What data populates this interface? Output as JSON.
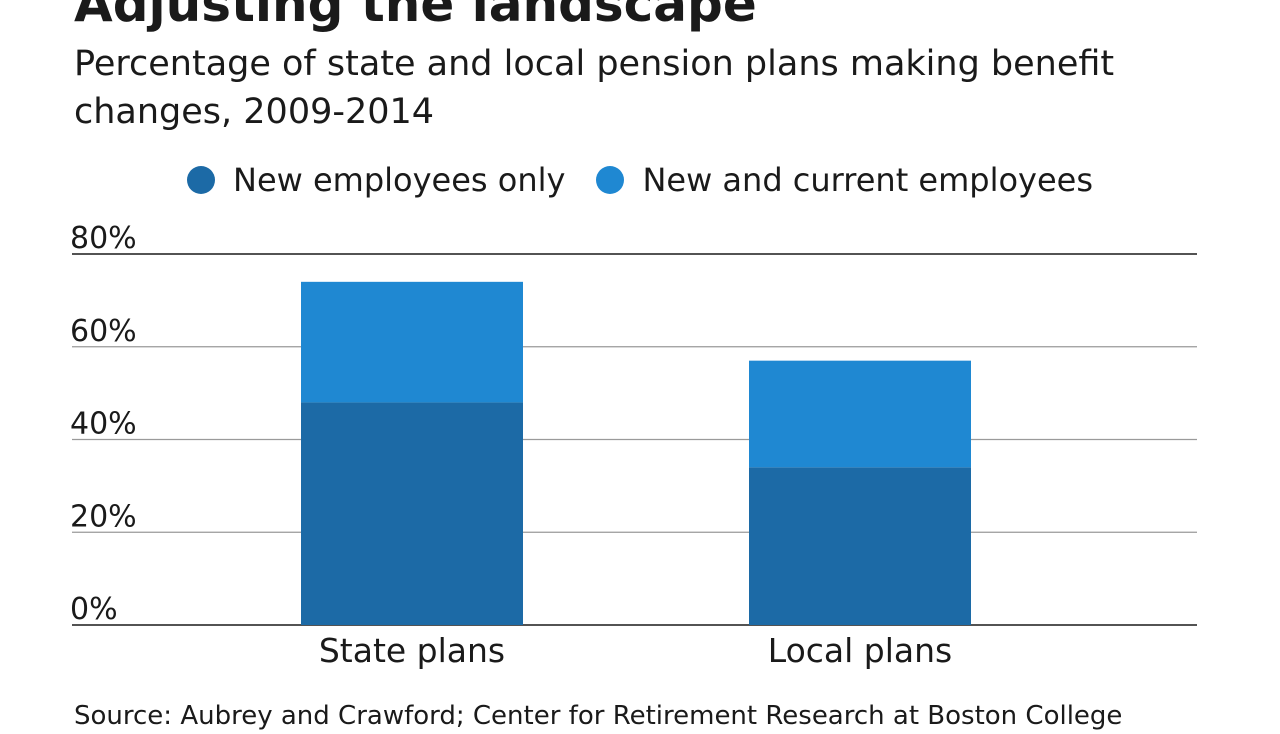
{
  "colors": {
    "new_only": "#1c6aa6",
    "new_and_current": "#1f88d2",
    "gridline": "#9a9a9a",
    "baseline": "#1a1a1a"
  },
  "chart_data": {
    "type": "bar",
    "stacked": true,
    "title": "Adjusting the landscape",
    "subtitle": "Percentage of state and local pension plans making benefit changes, 2009-2014",
    "categories": [
      "State plans",
      "Local plans"
    ],
    "series": [
      {
        "name": "New employees only",
        "values": [
          48,
          34
        ]
      },
      {
        "name": "New and current employees",
        "values": [
          26,
          23
        ]
      }
    ],
    "ylim": [
      0,
      80
    ],
    "yticks": [
      0,
      20,
      40,
      60,
      80
    ],
    "ytick_labels": [
      "0%",
      "20%",
      "40%",
      "60%",
      "80%"
    ],
    "grid": true,
    "legend_position": "top"
  },
  "source": "Source: Aubrey and Crawford; Center for Retirement Research at Boston College"
}
